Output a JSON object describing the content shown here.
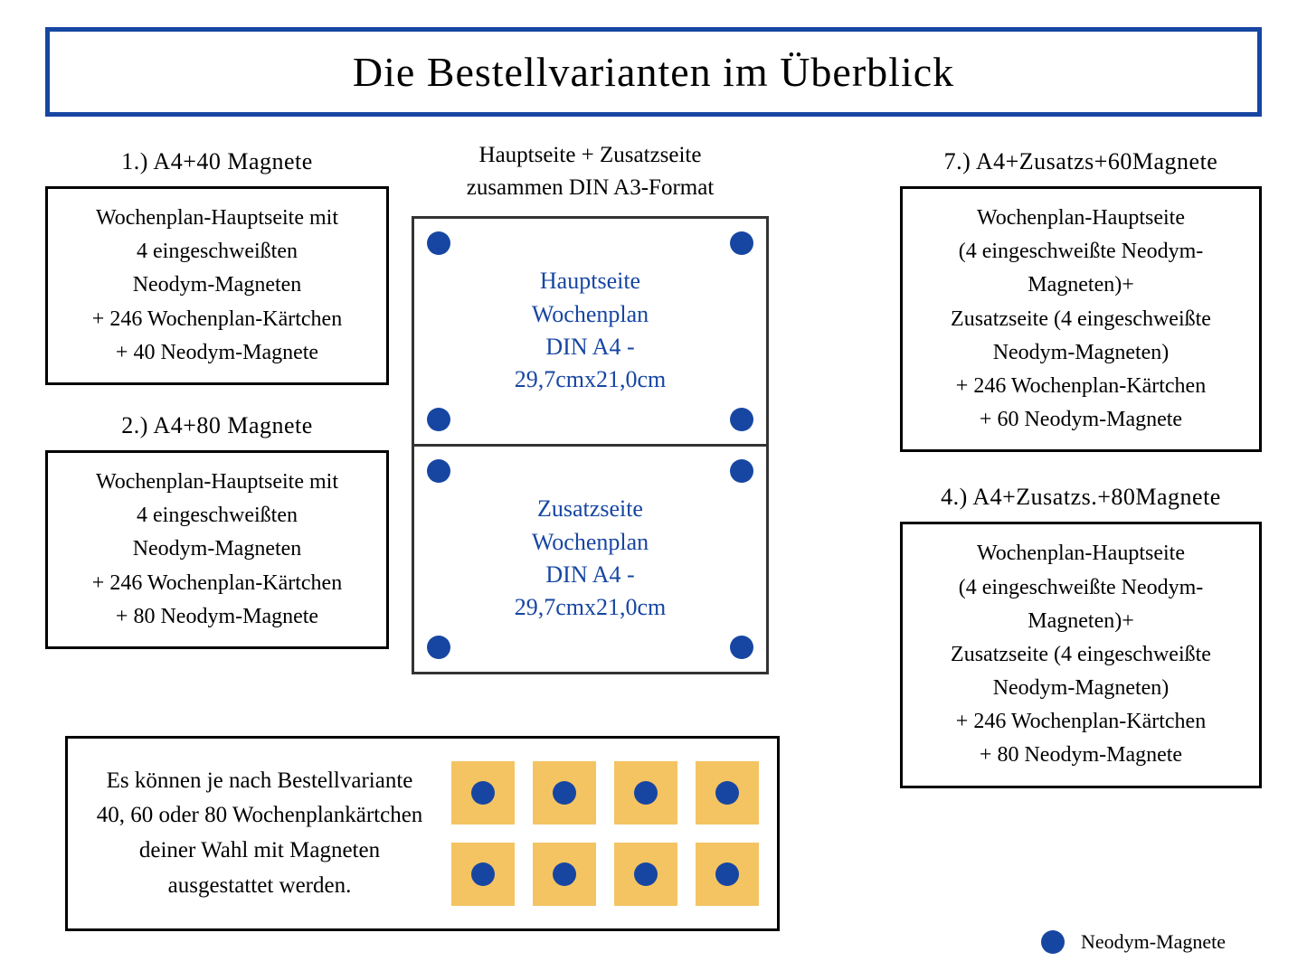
{
  "title": "Die Bestellvarianten im Überblick",
  "colors": {
    "accent": "#1746a2",
    "card": "#f4c463",
    "border": "#000000",
    "bg": "#ffffff"
  },
  "center": {
    "subtitle_l1": "Hauptseite + Zusatzseite",
    "subtitle_l2": "zusammen DIN A3-Format",
    "page1": {
      "l1": "Hauptseite",
      "l2": "Wochenplan",
      "l3": "DIN A4 -",
      "l4": "29,7cmx21,0cm"
    },
    "page2": {
      "l1": "Zusatzseite",
      "l2": "Wochenplan",
      "l3": "DIN A4 -",
      "l4": "29,7cmx21,0cm"
    }
  },
  "options": {
    "o1": {
      "title": "1.) A4+40 Magnete",
      "l1": "Wochenplan-Hauptseite mit",
      "l2": "4 eingeschweißten",
      "l3": "Neodym-Magneten",
      "l4": "+ 246 Wochenplan-Kärtchen",
      "l5": "+ 40 Neodym-Magnete"
    },
    "o2": {
      "title": "2.) A4+80 Magnete",
      "l1": "Wochenplan-Hauptseite mit",
      "l2": "4 eingeschweißten",
      "l3": "Neodym-Magneten",
      "l4": "+ 246 Wochenplan-Kärtchen",
      "l5": "+ 80 Neodym-Magnete"
    },
    "o7": {
      "title": "7.) A4+Zusatzs+60Magnete",
      "l1": "Wochenplan-Hauptseite",
      "l2": "(4 eingeschweißte Neodym-",
      "l3": "Magneten)+",
      "l4": "Zusatzseite (4 eingeschweißte",
      "l5": "Neodym-Magneten)",
      "l6": "+ 246 Wochenplan-Kärtchen",
      "l7": "+ 60 Neodym-Magnete"
    },
    "o4": {
      "title": "4.) A4+Zusatzs.+80Magnete",
      "l1": "Wochenplan-Hauptseite",
      "l2": "(4 eingeschweißte Neodym-",
      "l3": "Magneten)+",
      "l4": "Zusatzseite (4 eingeschweißte",
      "l5": "Neodym-Magneten)",
      "l6": "+ 246 Wochenplan-Kärtchen",
      "l7": "+ 80 Neodym-Magnete"
    }
  },
  "bottom": {
    "l1": "Es können je nach Bestellvariante",
    "l2": "40, 60 oder 80 Wochenplankärtchen",
    "l3": "deiner Wahl mit Magneten",
    "l4": "ausgestattet werden."
  },
  "legend": "Neodym-Magnete"
}
